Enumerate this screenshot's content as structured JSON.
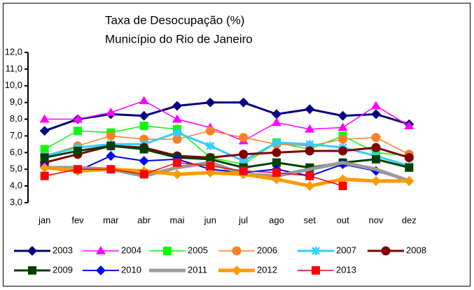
{
  "chart_data": {
    "type": "line",
    "title": "Taxa de Desocupação (%)",
    "subtitle": "Município do Rio de Janeiro",
    "categories": [
      "jan",
      "fev",
      "mar",
      "abr",
      "mai",
      "jun",
      "jul",
      "ago",
      "set",
      "out",
      "nov",
      "dez"
    ],
    "ylim": [
      3,
      12
    ],
    "yticks": [
      {
        "value": 3,
        "label": "3,0"
      },
      {
        "value": 4,
        "label": "4,0"
      },
      {
        "value": 5,
        "label": "5,0"
      },
      {
        "value": 6,
        "label": "6,0"
      },
      {
        "value": 7,
        "label": "7,0"
      },
      {
        "value": 8,
        "label": "8,0"
      },
      {
        "value": 9,
        "label": "9,0"
      },
      {
        "value": 10,
        "label": "10,0"
      },
      {
        "value": 11,
        "label": "11,0"
      },
      {
        "value": 12,
        "label": "12,0"
      }
    ],
    "grid": false,
    "series": [
      {
        "name": "2003",
        "color": "#000080",
        "marker": "diamond",
        "width": 3,
        "values": [
          7.3,
          8.0,
          8.3,
          8.2,
          8.8,
          9.0,
          9.0,
          8.3,
          8.6,
          8.2,
          8.3,
          7.7
        ]
      },
      {
        "name": "2004",
        "color": "#ff00ff",
        "marker": "triangle",
        "width": 1.5,
        "values": [
          8.0,
          8.0,
          8.4,
          9.1,
          8.0,
          7.5,
          6.7,
          7.8,
          7.4,
          7.5,
          8.8,
          7.6
        ]
      },
      {
        "name": "2005",
        "color": "#00ff00",
        "marker": "square",
        "width": 1.5,
        "values": [
          6.2,
          7.3,
          7.2,
          7.6,
          7.4,
          5.7,
          5.3,
          6.6,
          6.2,
          7.0,
          6.0,
          5.8
        ]
      },
      {
        "name": "2006",
        "color": "#ff7f27",
        "marker": "circle",
        "width": 1.5,
        "values": [
          5.8,
          6.4,
          7.0,
          6.8,
          6.8,
          7.3,
          6.9,
          6.5,
          6.4,
          6.8,
          6.9,
          5.9
        ]
      },
      {
        "name": "2007",
        "color": "#33ccff",
        "marker": "star",
        "width": 3,
        "values": [
          5.8,
          6.3,
          6.5,
          6.5,
          7.2,
          6.4,
          5.5,
          6.6,
          6.5,
          6.3,
          5.8,
          5.2
        ]
      },
      {
        "name": "2008",
        "color": "#800000",
        "marker": "circle",
        "width": 3,
        "values": [
          5.4,
          5.9,
          6.4,
          6.3,
          5.8,
          5.7,
          5.9,
          6.0,
          6.1,
          6.1,
          6.3,
          5.7
        ]
      },
      {
        "name": "2009",
        "color": "#004000",
        "marker": "square",
        "width": 3,
        "values": [
          5.7,
          6.1,
          6.4,
          6.2,
          5.7,
          5.6,
          5.1,
          5.4,
          5.1,
          5.4,
          5.6,
          5.1
        ]
      },
      {
        "name": "2010",
        "color": "#0000ff",
        "marker": "diamond",
        "width": 2,
        "values": [
          5.2,
          4.9,
          5.8,
          5.5,
          5.6,
          5.0,
          4.8,
          5.0,
          4.6,
          5.3,
          4.9,
          4.3
        ]
      },
      {
        "name": "2011",
        "color": "#999999",
        "marker": "none",
        "width": 5,
        "values": [
          5.1,
          5.1,
          5.0,
          4.6,
          5.1,
          5.4,
          4.7,
          4.6,
          5.0,
          5.4,
          5.0,
          4.3
        ]
      },
      {
        "name": "2012",
        "color": "#ff9900",
        "marker": "diamond",
        "width": 5,
        "values": [
          5.1,
          4.9,
          5.0,
          4.9,
          4.7,
          4.8,
          4.7,
          4.4,
          4.0,
          4.4,
          4.3,
          4.3
        ]
      },
      {
        "name": "2013",
        "color": "#ff0000",
        "marker": "square",
        "width": 1.5,
        "values": [
          4.6,
          5.0,
          5.0,
          4.7,
          5.4,
          5.2,
          4.9,
          4.8,
          4.6,
          4.0,
          null,
          null
        ]
      }
    ]
  }
}
